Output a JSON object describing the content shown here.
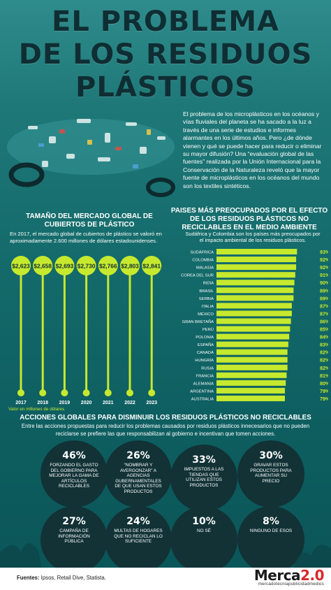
{
  "title": {
    "line1": "EL PROBLEMA",
    "line2": "DE LOS RESIDUOS",
    "line3": "PLÁSTICOS"
  },
  "intro": "El problema de los microplásticos en los océanos y vías fluviales del planeta se ha sacado a la luz a través de una serie de estudios e informes alarmantes en los últimos años. Pero ¿de dónde vienen y qué se puede hacer para reducir o eliminar su mayor difusión? Una “evaluación global de las fuentes” realizada por la Unión Internacional para la Conservación de la Naturaleza reveló que la mayor fuente de microplásticos en los océanos del mundo son los textiles sintéticos.",
  "colors": {
    "accent": "#c6e92e",
    "dark": "#123236",
    "title": "#0f2e33",
    "bg": "#146a6a"
  },
  "market": {
    "title": "TAMAÑO DEL MERCADO GLOBAL DE CUBIERTOS DE PLÁSTICO",
    "subtitle": "En 2017, el mercado global de cubiertos de plástico se valoró en aproximadamente 2.600 millones de dólares estadounidenses.",
    "unit": "Valor en millones de dólares"
  },
  "countries": {
    "title": "PAISES MÁS PREOCUPADOS POR EL EFECTO DE LOS RESIDUOS PLÁSTICOS NO RECICLABLES EN EL MEDIO AMBIENTE",
    "subtitle": "Sudáfrica y Colombia son los países más preocupados por el impacto ambiental de los residuos plásticos."
  },
  "chart_data": [
    {
      "type": "line",
      "title": "TAMAÑO DEL MERCADO GLOBAL DE CUBIERTOS DE PLÁSTICO",
      "categories": [
        "2017",
        "2018",
        "2019",
        "2020",
        "2021",
        "2022",
        "2023"
      ],
      "values": [
        2623,
        2658,
        2693,
        2730,
        2766,
        2803,
        2841
      ],
      "labels": [
        "$2,623",
        "$2,658",
        "$2,693",
        "$2,730",
        "$2,766",
        "$2,803",
        "$2,841"
      ],
      "ylabel": "Valor en millones de dólares"
    },
    {
      "type": "bar",
      "orientation": "horizontal",
      "title": "PAISES MÁS PREOCUPADOS POR EL EFECTO DE LOS RESIDUOS PLÁSTICOS NO RECICLABLES EN EL MEDIO AMBIENTE",
      "categories": [
        "SUDÁFRICA",
        "COLOMBIA",
        "MALASIA",
        "COREA DEL SUR",
        "INDIA",
        "BRASIL",
        "SERBIA",
        "ITALIA",
        "MÉXICO",
        "GRAN BRETAÑA",
        "PERÚ",
        "POLONIA",
        "ESPAÑA",
        "CANADÁ",
        "HUNGRÍA",
        "RUSIA",
        "FRANCIA",
        "ALEMANIA",
        "ARGENTINA",
        "AUSTRALIA"
      ],
      "values": [
        93,
        92,
        92,
        91,
        90,
        89,
        89,
        87,
        87,
        86,
        85,
        84,
        83,
        82,
        82,
        82,
        81,
        80,
        79,
        79
      ],
      "labels": [
        "93%",
        "92%",
        "92%",
        "91%",
        "90%",
        "89%",
        "89%",
        "87%",
        "87%",
        "86%",
        "85%",
        "84%",
        "83%",
        "82%",
        "82%",
        "82%",
        "81%",
        "80%",
        "79%",
        "79%"
      ],
      "xlim": [
        0,
        100
      ]
    }
  ],
  "actions": {
    "title": "ACCIONES GLOBALES PARA DISMINUIR LOS RESIDUOS PLÁSTICOS NO RECICLABLES",
    "subtitle": "Entre las acciones propuestas para reducir los problemas causados por residuos plásticos innecesarios que no pueden reciclarse se prefiere las que responsabilizan al gobierno e incentivan que tomen acciones.",
    "items": [
      {
        "pct": "46%",
        "desc": "FORZANDO EL GASTO DEL GOBIERNO PARA MEJORAR LA GAMA DE ARTÍCULOS RECICLABLES"
      },
      {
        "pct": "26%",
        "desc": "“NOMBRAR Y AVERGONZAR” A AGENCIAS GUBERNAMENTALES DE QUE USAN ESTOS PRODUCTOS"
      },
      {
        "pct": "33%",
        "desc": "IMPUESTOS A LAS TIENDAS QUE UTILIZAN ESTOS PRODUCTOS"
      },
      {
        "pct": "30%",
        "desc": "GRAVAR ESTOS PRODUCTOS PARA AUMENTAR SU PRECIO"
      },
      {
        "pct": "27%",
        "desc": "CAMPAÑA DE INFORMACIÓN PÚBLICA"
      },
      {
        "pct": "24%",
        "desc": "MULTAS DE HOGARES QUE NO RECICLAN LO SUFICIENTE"
      },
      {
        "pct": "10%",
        "desc": "NO SÉ"
      },
      {
        "pct": "8%",
        "desc": "NINGUNO DE ESOS"
      }
    ]
  },
  "footer": {
    "sources_label": "Fuentes:",
    "sources": "Ipsos, Retail Dive, Statista.",
    "brand_a": "Merca",
    "brand_b": "2.0",
    "tagline": "mercadotecniapublicidadmedios"
  }
}
